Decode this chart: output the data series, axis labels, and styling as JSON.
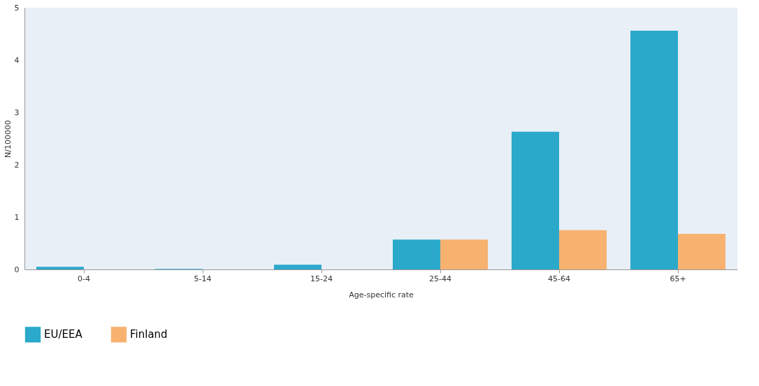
{
  "chart_data": {
    "type": "bar",
    "xlabel": "Age-specific rate",
    "ylabel": "N/100000",
    "categories": [
      "0-4",
      "5-14",
      "15-24",
      "25-44",
      "45-64",
      "65+"
    ],
    "series": [
      {
        "name": "EU/EEA",
        "color": "#2aa9cb",
        "values": [
          0.05,
          0.01,
          0.09,
          0.57,
          2.63,
          4.56
        ]
      },
      {
        "name": "Finland",
        "color": "#f8b26f",
        "values": [
          0,
          0,
          0,
          0.57,
          0.75,
          0.68
        ]
      }
    ],
    "ylim": [
      0,
      5
    ],
    "yticks": [
      0,
      1,
      2,
      3,
      4,
      5
    ],
    "grid": false,
    "legend": "bottom"
  }
}
